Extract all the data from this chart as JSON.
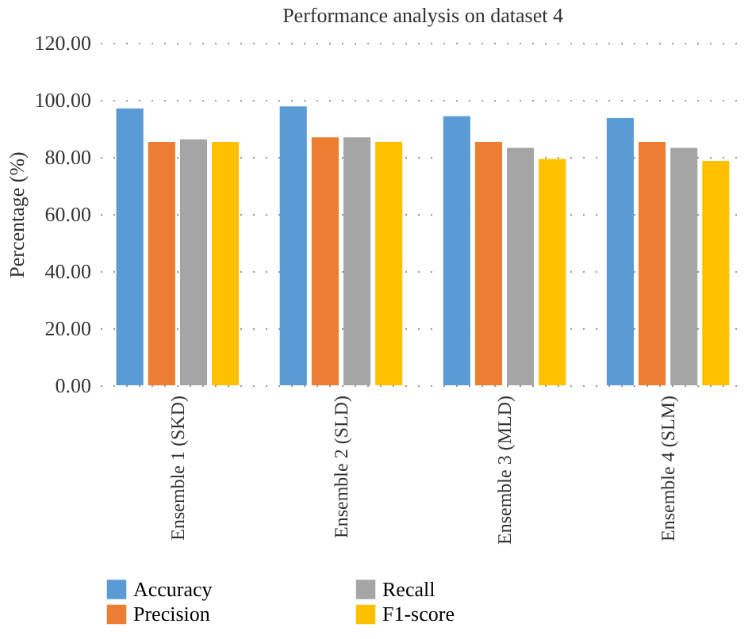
{
  "chart_data": {
    "type": "bar",
    "title": "Performance analysis on dataset 4",
    "ylabel": "Percentage (%)",
    "categories": [
      "Ensemble 1 (SKD)",
      "Ensemble 2 (SLD)",
      "Ensemble 3 (MLD)",
      "Ensemble 4 (SLM)"
    ],
    "series": [
      {
        "name": "Accuracy",
        "color": "#5b9bd5",
        "values": [
          97.0,
          97.7,
          94.3,
          93.6
        ]
      },
      {
        "name": "Precision",
        "color": "#ed7d31",
        "values": [
          85.3,
          86.9,
          85.3,
          85.3
        ]
      },
      {
        "name": "Recall",
        "color": "#a5a5a5",
        "values": [
          86.2,
          86.9,
          83.2,
          83.2
        ]
      },
      {
        "name": "F1-score",
        "color": "#ffc000",
        "values": [
          85.3,
          85.3,
          79.3,
          78.6
        ]
      }
    ],
    "ylim": [
      0,
      120
    ],
    "yticks": [
      {
        "value": 0,
        "label": "0.00"
      },
      {
        "value": 20,
        "label": "20.00"
      },
      {
        "value": 40,
        "label": "40.00"
      },
      {
        "value": 60,
        "label": "60.00"
      },
      {
        "value": 80,
        "label": "80.00"
      },
      {
        "value": 100,
        "label": "100.00"
      },
      {
        "value": 120,
        "label": "120.00"
      }
    ],
    "grid": "y",
    "legend": "bottom"
  }
}
